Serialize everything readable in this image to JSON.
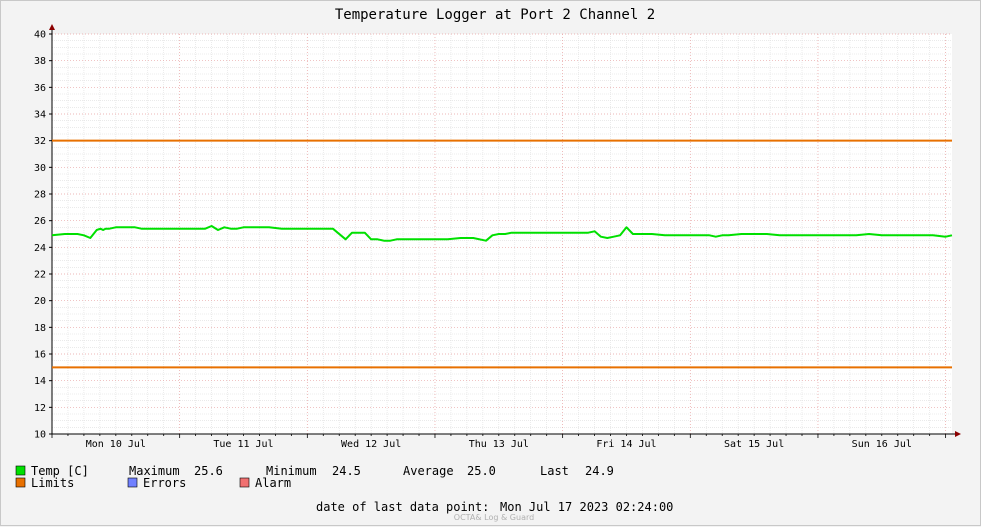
{
  "chart_data": {
    "type": "line",
    "title": "Temperature Logger at Port 2 Channel 2",
    "ylim": [
      10,
      40
    ],
    "yticks": [
      10,
      12,
      14,
      16,
      18,
      20,
      22,
      24,
      26,
      28,
      30,
      32,
      34,
      36,
      38,
      40
    ],
    "xlim": [
      0,
      7.05
    ],
    "xtick_labels": [
      "Mon 10 Jul",
      "Tue 11 Jul",
      "Wed 12 Jul",
      "Thu 13 Jul",
      "Fri 14 Jul",
      "Sat 15 Jul",
      "Sun 16 Jul"
    ],
    "grid": true,
    "series": [
      {
        "name": "Temp [C]",
        "color": "#00e000",
        "x": [
          0.0,
          0.1,
          0.2,
          0.25,
          0.3,
          0.35,
          0.38,
          0.4,
          0.42,
          0.45,
          0.5,
          0.55,
          0.6,
          0.65,
          0.7,
          0.75,
          0.8,
          0.85,
          0.9,
          1.0,
          1.1,
          1.2,
          1.25,
          1.3,
          1.35,
          1.4,
          1.45,
          1.5,
          1.6,
          1.7,
          1.8,
          1.9,
          2.0,
          2.1,
          2.2,
          2.3,
          2.35,
          2.4,
          2.45,
          2.5,
          2.55,
          2.6,
          2.65,
          2.7,
          2.8,
          2.9,
          3.0,
          3.1,
          3.2,
          3.3,
          3.4,
          3.45,
          3.5,
          3.55,
          3.6,
          3.7,
          3.8,
          3.9,
          4.0,
          4.1,
          4.2,
          4.25,
          4.3,
          4.35,
          4.4,
          4.45,
          4.5,
          4.55,
          4.6,
          4.7,
          4.8,
          4.9,
          5.0,
          5.1,
          5.15,
          5.2,
          5.25,
          5.3,
          5.4,
          5.5,
          5.6,
          5.7,
          5.8,
          5.9,
          6.0,
          6.1,
          6.2,
          6.3,
          6.4,
          6.5,
          6.6,
          6.7,
          6.8,
          6.9,
          7.0,
          7.05
        ],
        "y": [
          24.9,
          25.0,
          25.0,
          24.9,
          24.7,
          25.3,
          25.4,
          25.3,
          25.4,
          25.4,
          25.5,
          25.5,
          25.5,
          25.5,
          25.4,
          25.4,
          25.4,
          25.4,
          25.4,
          25.4,
          25.4,
          25.4,
          25.6,
          25.3,
          25.5,
          25.4,
          25.4,
          25.5,
          25.5,
          25.5,
          25.4,
          25.4,
          25.4,
          25.4,
          25.4,
          24.6,
          25.1,
          25.1,
          25.1,
          24.6,
          24.6,
          24.5,
          24.5,
          24.6,
          24.6,
          24.6,
          24.6,
          24.6,
          24.7,
          24.7,
          24.5,
          24.9,
          25.0,
          25.0,
          25.1,
          25.1,
          25.1,
          25.1,
          25.1,
          25.1,
          25.1,
          25.2,
          24.8,
          24.7,
          24.8,
          24.9,
          25.5,
          25.0,
          25.0,
          25.0,
          24.9,
          24.9,
          24.9,
          24.9,
          24.9,
          24.8,
          24.9,
          24.9,
          25.0,
          25.0,
          25.0,
          24.9,
          24.9,
          24.9,
          24.9,
          24.9,
          24.9,
          24.9,
          25.0,
          24.9,
          24.9,
          24.9,
          24.9,
          24.9,
          24.8,
          24.9
        ]
      },
      {
        "name": "Limits",
        "color": "#e87000",
        "values": [
          32,
          15
        ]
      }
    ],
    "legend": {
      "temp_label": "Temp [C]",
      "maximum_label": "Maximum",
      "maximum_value": "25.6",
      "minimum_label": "Minimum",
      "minimum_value": "24.5",
      "average_label": "Average",
      "average_value": "25.0",
      "last_label": "Last",
      "last_value": "24.9",
      "limits_label": "Limits",
      "errors_label": "Errors",
      "alarm_label": "Alarm",
      "colors": {
        "temp": "#00e000",
        "limits": "#e87000",
        "errors": "#7080ff",
        "alarm": "#f07070"
      }
    },
    "footer": {
      "label": "date of last data point:",
      "value": "Mon Jul 17 2023 02:24:00"
    },
    "watermark": "OCTA& Log & Guard"
  }
}
